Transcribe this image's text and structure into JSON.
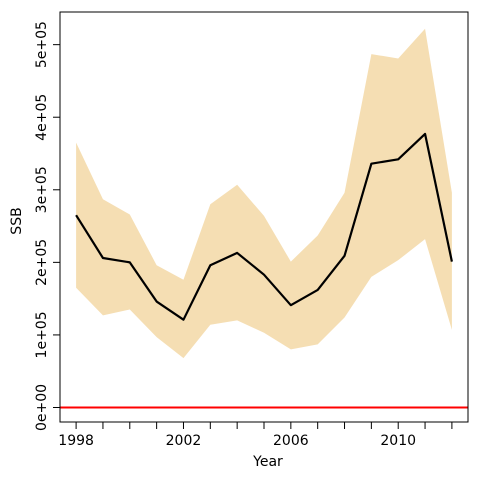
{
  "chart_data": {
    "type": "line",
    "xlabel": "Year",
    "ylabel": "SSB",
    "x": [
      1998,
      1999,
      2000,
      2001,
      2002,
      2003,
      2004,
      2005,
      2006,
      2007,
      2008,
      2009,
      2010,
      2011,
      2012
    ],
    "series": [
      {
        "role": "estimate",
        "color": "#000000",
        "values": [
          265000,
          206000,
          200000,
          146000,
          121000,
          196000,
          213000,
          183000,
          141000,
          162000,
          209000,
          336000,
          342000,
          377000,
          201000
        ]
      },
      {
        "role": "upper-bound",
        "values": [
          365000,
          287000,
          266000,
          196000,
          176000,
          280000,
          307000,
          264000,
          201000,
          237000,
          296000,
          487000,
          481000,
          522000,
          296000
        ]
      },
      {
        "role": "lower-bound",
        "values": [
          165000,
          127000,
          135000,
          97000,
          68000,
          114000,
          120000,
          103000,
          80000,
          87000,
          124000,
          180000,
          203000,
          232000,
          107000
        ]
      },
      {
        "role": "reference",
        "color": "#ff0000",
        "values": [
          0,
          0,
          0,
          0,
          0,
          0,
          0,
          0,
          0,
          0,
          0,
          0,
          0,
          0,
          0
        ]
      }
    ],
    "band_color": "#f5deb3",
    "xlim": [
      1997.4,
      2012.6
    ],
    "ylim": [
      -20000,
      545000
    ],
    "x_ticks": [
      1998,
      1999,
      2000,
      2001,
      2002,
      2003,
      2004,
      2005,
      2006,
      2007,
      2008,
      2009,
      2010,
      2011,
      2012
    ],
    "x_tick_labels": [
      "1998",
      "",
      "",
      "",
      "2002",
      "",
      "",
      "",
      "2006",
      "",
      "",
      "",
      "2010",
      "",
      ""
    ],
    "y_ticks": [
      0,
      100000,
      200000,
      300000,
      400000,
      500000
    ],
    "y_tick_labels": [
      "0e+00",
      "1e+05",
      "2e+05",
      "3e+05",
      "4e+05",
      "5e+05"
    ],
    "grid": false,
    "legend": "none"
  }
}
